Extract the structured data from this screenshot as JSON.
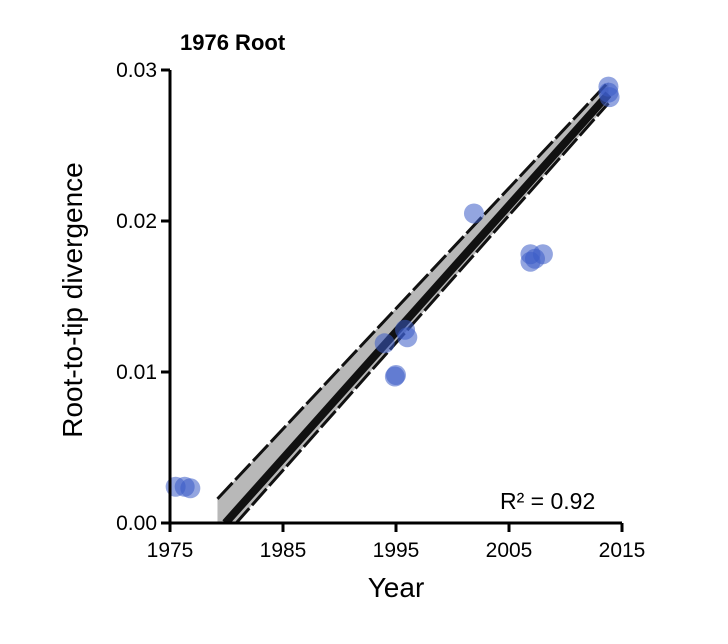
{
  "chart_data": {
    "type": "scatter",
    "title": "1976 Root",
    "xlabel": "Year",
    "ylabel": "Root-to-tip divergence",
    "xlim": [
      1975,
      2015
    ],
    "ylim": [
      0,
      0.03
    ],
    "x_ticks": [
      {
        "value": 1975,
        "label": "1975"
      },
      {
        "value": 1985,
        "label": "1985"
      },
      {
        "value": 1995,
        "label": "1995"
      },
      {
        "value": 2005,
        "label": "2005"
      },
      {
        "value": 2015,
        "label": "2015"
      }
    ],
    "y_ticks": [
      {
        "value": 0,
        "label": "0.00"
      },
      {
        "value": 0.01,
        "label": "0.01"
      },
      {
        "value": 0.02,
        "label": "0.02"
      },
      {
        "value": 0.03,
        "label": "0.03"
      }
    ],
    "points": [
      {
        "x": 1975.5,
        "y": 0.0024
      },
      {
        "x": 1976.3,
        "y": 0.0024
      },
      {
        "x": 1976.8,
        "y": 0.0023
      },
      {
        "x": 1994.0,
        "y": 0.0119
      },
      {
        "x": 1994.9,
        "y": 0.0097
      },
      {
        "x": 1995.0,
        "y": 0.0098
      },
      {
        "x": 1995.8,
        "y": 0.0128
      },
      {
        "x": 1996.0,
        "y": 0.0123
      },
      {
        "x": 2001.9,
        "y": 0.0205
      },
      {
        "x": 2006.9,
        "y": 0.0178
      },
      {
        "x": 2006.9,
        "y": 0.0173
      },
      {
        "x": 2007.3,
        "y": 0.0175
      },
      {
        "x": 2008.0,
        "y": 0.0178
      },
      {
        "x": 2013.8,
        "y": 0.0289
      },
      {
        "x": 2013.8,
        "y": 0.0285
      },
      {
        "x": 2013.9,
        "y": 0.0282
      }
    ],
    "regression": {
      "x": [
        1979.9,
        2013.8
      ],
      "y": [
        0.0,
        0.0284
      ],
      "confidence_band": {
        "x": [
          1979.2,
          2013.8
        ],
        "upper": [
          0.0016,
          0.0292
        ],
        "lower": [
          -0.0014,
          0.0278
        ]
      }
    },
    "annotation": "R² = 0.92",
    "colors": {
      "point": "#3a5bc7",
      "band": "#b8b8b8",
      "line": "#111111"
    },
    "grid": false,
    "legend": "none"
  }
}
